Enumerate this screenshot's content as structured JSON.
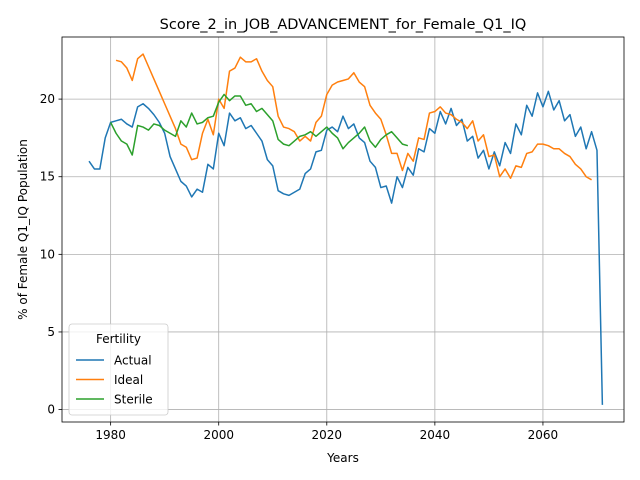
{
  "chart_data": {
    "type": "line",
    "title": "Score_2_in_JOB_ADVANCEMENT_for_Female_Q1_IQ",
    "xlabel": "Years",
    "ylabel": "% of Female Q1_IQ Population",
    "xlim": [
      1971,
      2075
    ],
    "ylim": [
      -0.8,
      24
    ],
    "x_ticks": [
      1980,
      2000,
      2020,
      2040,
      2060
    ],
    "y_ticks": [
      0,
      5,
      10,
      15,
      20
    ],
    "grid": true,
    "legend": {
      "title": "Fertility",
      "position": "lower-left"
    },
    "series": [
      {
        "name": "Actual",
        "color": "#1f77b4",
        "x_start": 1976,
        "values": [
          16.0,
          15.5,
          15.5,
          17.5,
          18.5,
          18.6,
          18.7,
          18.4,
          18.2,
          19.5,
          19.7,
          19.4,
          19.0,
          18.5,
          17.8,
          16.3,
          15.5,
          14.7,
          14.4,
          13.7,
          14.2,
          14.0,
          15.8,
          15.5,
          17.8,
          17.0,
          19.1,
          18.6,
          18.8,
          18.1,
          18.3,
          17.8,
          17.3,
          16.1,
          15.7,
          14.1,
          13.9,
          13.8,
          14.0,
          14.2,
          15.2,
          15.5,
          16.6,
          16.7,
          18.0,
          18.2,
          17.9,
          18.9,
          18.1,
          18.4,
          17.5,
          17.2,
          16.0,
          15.6,
          14.3,
          14.4,
          13.3,
          15.0,
          14.3,
          15.6,
          15.1,
          16.8,
          16.6,
          18.1,
          17.8,
          19.2,
          18.4,
          19.4,
          18.3,
          18.7,
          17.3,
          17.6,
          16.2,
          16.7,
          15.5,
          16.6,
          15.7,
          17.2,
          16.5,
          18.4,
          17.7,
          19.6,
          18.9,
          20.4,
          19.5,
          20.5,
          19.3,
          19.9,
          18.6,
          19.0,
          17.6,
          18.2,
          16.8,
          17.9,
          16.7,
          0.3
        ]
      },
      {
        "name": "Ideal",
        "color": "#ff7f0e",
        "x_start": 1981,
        "values": [
          22.5,
          22.4,
          22.0,
          21.2,
          22.6,
          22.9,
          22.1,
          21.3,
          20.5,
          19.7,
          18.9,
          18.1,
          17.1,
          16.9,
          16.1,
          16.2,
          17.8,
          18.7,
          17.7,
          20.0,
          19.4,
          21.8,
          22.0,
          22.7,
          22.4,
          22.4,
          22.6,
          21.8,
          21.2,
          20.8,
          18.9,
          18.2,
          18.1,
          17.9,
          17.3,
          17.6,
          17.3,
          18.5,
          18.9,
          20.3,
          20.9,
          21.1,
          21.2,
          21.3,
          21.7,
          21.1,
          20.8,
          19.6,
          19.1,
          18.7,
          17.7,
          16.5,
          16.5,
          15.4,
          16.5,
          16.0,
          17.5,
          17.4,
          19.1,
          19.2,
          19.5,
          19.1,
          19.0,
          18.7,
          18.5,
          18.1,
          18.6,
          17.3,
          17.7,
          16.3,
          16.4,
          15.0,
          15.5,
          14.9,
          15.7,
          15.6,
          16.5,
          16.6,
          17.1,
          17.1,
          17.0,
          16.8,
          16.8,
          16.5,
          16.3,
          15.8,
          15.5,
          15.0,
          14.8
        ]
      },
      {
        "name": "Sterile",
        "color": "#2ca02c",
        "x_start": 1980,
        "values": [
          18.5,
          17.8,
          17.3,
          17.1,
          16.4,
          18.3,
          18.2,
          18.0,
          18.4,
          18.3,
          18.0,
          17.8,
          17.6,
          18.6,
          18.2,
          19.1,
          18.4,
          18.5,
          18.8,
          18.9,
          19.8,
          20.3,
          19.9,
          20.2,
          20.2,
          19.6,
          19.7,
          19.2,
          19.4,
          19.0,
          18.6,
          17.4,
          17.1,
          17.0,
          17.3,
          17.6,
          17.7,
          17.9,
          17.6,
          17.9,
          18.2,
          17.8,
          17.5,
          16.8,
          17.2,
          17.5,
          17.8,
          18.2,
          17.3,
          16.9,
          17.4,
          17.7,
          17.9,
          17.5,
          17.1,
          17.0
        ]
      }
    ]
  }
}
